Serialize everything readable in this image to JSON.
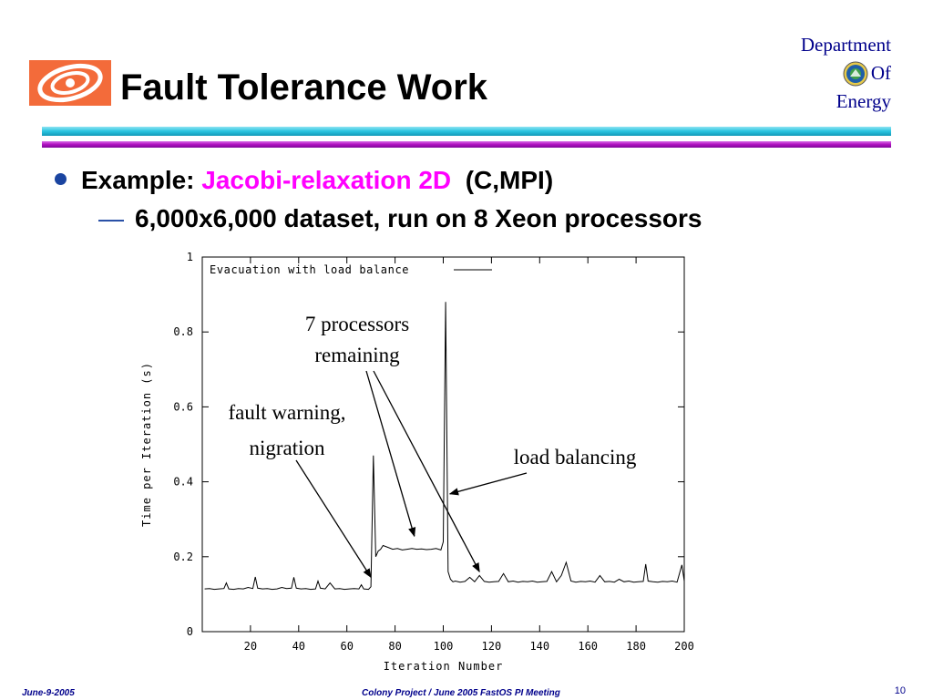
{
  "slide": {
    "title": "Fault Tolerance Work",
    "doe": {
      "line1": "Department",
      "line2": "Of",
      "line3": "Energy"
    },
    "bullet1": {
      "prefix": "Example: ",
      "highlight": "Jacobi-relaxation 2D",
      "suffix": "  (C,MPI)"
    },
    "bullet2": "6,000x6,000 dataset, run on 8 Xeon processors",
    "footer": {
      "date": "June-9-2005",
      "center": "Colony Project / June 2005 FastOS PI Meeting",
      "page": "10"
    },
    "colors": {
      "title": "#000000",
      "highlight": "#ff00ff",
      "doe_text": "#00008b",
      "rule_cyan": "#29c4e0",
      "rule_purple": "#b010c0"
    }
  },
  "chart_data": {
    "type": "line",
    "legend": "Evacuation with load balance",
    "legend_position": "top-left",
    "xlabel": "Iteration Number",
    "ylabel": "Time per Iteration (s)",
    "xlim": [
      0,
      200
    ],
    "ylim": [
      0,
      1
    ],
    "xticks": [
      20,
      40,
      60,
      80,
      100,
      120,
      140,
      160,
      180,
      200
    ],
    "yticks": [
      0,
      0.2,
      0.4,
      0.6,
      0.8,
      1
    ],
    "ytick_labels": [
      "0",
      "0.2",
      "0.4",
      "0.6",
      "0.8",
      "1"
    ],
    "grid": false,
    "series": [
      {
        "name": "Evacuation with load balance",
        "x": [
          1,
          3,
          5,
          7,
          9,
          10,
          11,
          13,
          15,
          17,
          19,
          21,
          22,
          23,
          25,
          27,
          29,
          31,
          33,
          35,
          37,
          38,
          39,
          41,
          43,
          45,
          47,
          48,
          49,
          51,
          53,
          55,
          57,
          59,
          61,
          63,
          65,
          66,
          67,
          69,
          70,
          71,
          72,
          73,
          74,
          75,
          77,
          79,
          81,
          83,
          85,
          87,
          89,
          91,
          93,
          95,
          97,
          99,
          100,
          101,
          102,
          103,
          104,
          105,
          107,
          109,
          111,
          113,
          115,
          117,
          119,
          121,
          123,
          125,
          127,
          129,
          131,
          133,
          135,
          137,
          139,
          141,
          143,
          145,
          147,
          149,
          151,
          153,
          155,
          157,
          159,
          161,
          163,
          165,
          167,
          169,
          171,
          173,
          175,
          177,
          179,
          181,
          183,
          184,
          185,
          187,
          189,
          191,
          193,
          195,
          197,
          199,
          200
        ],
        "y": [
          0.114,
          0.115,
          0.113,
          0.114,
          0.115,
          0.13,
          0.114,
          0.113,
          0.115,
          0.114,
          0.118,
          0.115,
          0.146,
          0.116,
          0.114,
          0.115,
          0.113,
          0.114,
          0.118,
          0.115,
          0.116,
          0.145,
          0.116,
          0.114,
          0.115,
          0.113,
          0.114,
          0.135,
          0.116,
          0.114,
          0.13,
          0.114,
          0.115,
          0.113,
          0.114,
          0.115,
          0.114,
          0.125,
          0.114,
          0.113,
          0.12,
          0.47,
          0.2,
          0.215,
          0.22,
          0.23,
          0.225,
          0.22,
          0.222,
          0.218,
          0.22,
          0.222,
          0.22,
          0.221,
          0.219,
          0.22,
          0.222,
          0.218,
          0.24,
          0.88,
          0.16,
          0.14,
          0.133,
          0.135,
          0.132,
          0.134,
          0.145,
          0.133,
          0.15,
          0.134,
          0.132,
          0.133,
          0.134,
          0.155,
          0.133,
          0.135,
          0.132,
          0.134,
          0.133,
          0.135,
          0.132,
          0.133,
          0.134,
          0.16,
          0.133,
          0.15,
          0.185,
          0.135,
          0.132,
          0.134,
          0.133,
          0.135,
          0.132,
          0.15,
          0.133,
          0.134,
          0.132,
          0.14,
          0.133,
          0.135,
          0.132,
          0.133,
          0.134,
          0.18,
          0.135,
          0.133,
          0.132,
          0.134,
          0.133,
          0.135,
          0.132,
          0.178,
          0.135
        ]
      }
    ],
    "annotations": [
      {
        "text": "7 processors",
        "text2": "remaining",
        "targets_x": [
          88,
          115
        ],
        "targets_y": [
          0.255,
          0.16
        ]
      },
      {
        "text": "fault warning,",
        "text2": "nigration",
        "targets_x": [
          70
        ],
        "targets_y": [
          0.145
        ]
      },
      {
        "text": "load balancing",
        "targets_x": [
          102
        ],
        "targets_y": [
          0.38
        ]
      }
    ]
  }
}
